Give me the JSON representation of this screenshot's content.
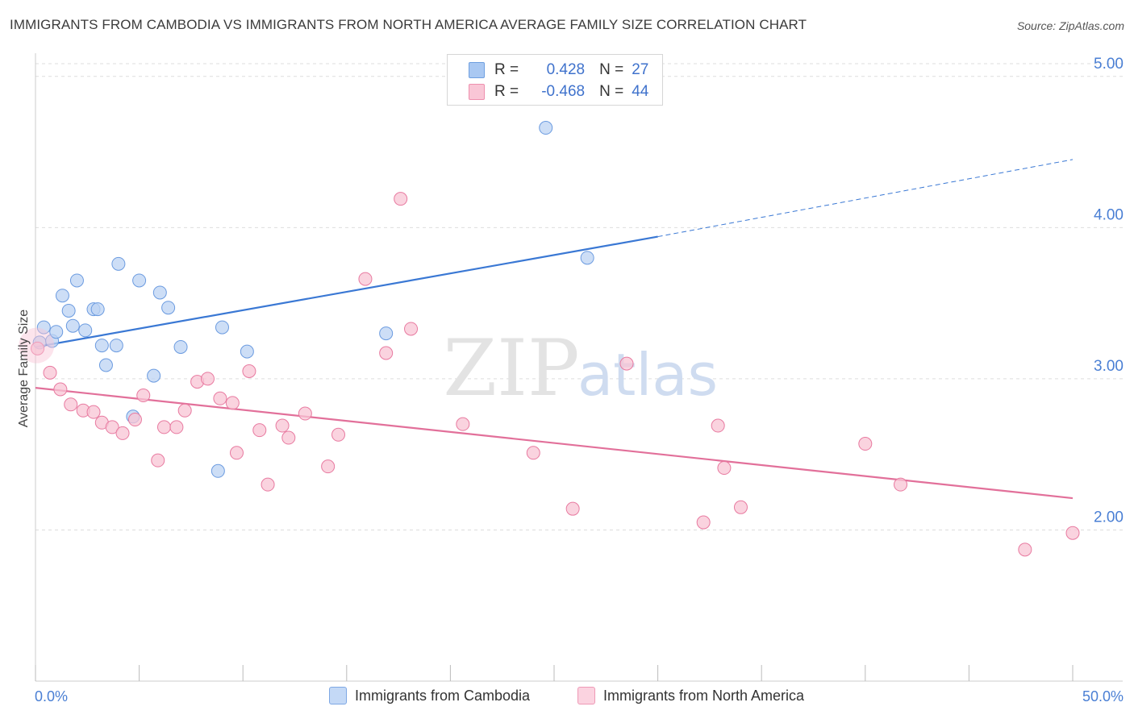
{
  "title": "IMMIGRANTS FROM CAMBODIA VS IMMIGRANTS FROM NORTH AMERICA AVERAGE FAMILY SIZE CORRELATION CHART",
  "source": "Source: ZipAtlas.com",
  "watermark": {
    "zip": "ZIP",
    "atlas": "atlas"
  },
  "legend": {
    "r_label": "R =",
    "n_label": "N =",
    "rows": [
      {
        "r": "0.428",
        "n": "27",
        "color": "#a9c8f2",
        "border": "#6f9fe0"
      },
      {
        "r": "-0.468",
        "n": "44",
        "color": "#f9c6d6",
        "border": "#ee8fae"
      }
    ]
  },
  "bottom_legend": [
    {
      "label": "Immigrants from Cambodia",
      "color": "#c4d9f6",
      "border": "#7ea8e4"
    },
    {
      "label": "Immigrants from North America",
      "color": "#fbd3e0",
      "border": "#ee99b6"
    }
  ],
  "chart_data": {
    "type": "scatter",
    "xlabel": "",
    "ylabel": "Average Family Size",
    "xlim": [
      0,
      50
    ],
    "ylim": [
      1.0,
      5.1
    ],
    "x_tick_labels": [
      "0.0%",
      "50.0%"
    ],
    "y_ticks": [
      2.0,
      3.0,
      4.0,
      5.0
    ],
    "y_tick_labels": [
      "2.00",
      "3.00",
      "4.00",
      "5.00"
    ],
    "grid": true,
    "series": [
      {
        "name": "Immigrants from Cambodia",
        "color": "#6b9be0",
        "fill": "#bcd3f3",
        "trend": {
          "x0": 0,
          "y0": 3.21,
          "x1": 30,
          "y1": 3.94,
          "dash_to_x": 50,
          "dash_to_y": 4.45
        },
        "points": [
          [
            0.2,
            3.24
          ],
          [
            0.4,
            3.34
          ],
          [
            0.8,
            3.25
          ],
          [
            1.0,
            3.31
          ],
          [
            1.3,
            3.55
          ],
          [
            1.6,
            3.45
          ],
          [
            1.8,
            3.35
          ],
          [
            2.0,
            3.65
          ],
          [
            2.4,
            3.32
          ],
          [
            2.8,
            3.46
          ],
          [
            3.2,
            3.22
          ],
          [
            3.4,
            3.09
          ],
          [
            3.9,
            3.22
          ],
          [
            4.0,
            3.76
          ],
          [
            4.7,
            2.75
          ],
          [
            5.0,
            3.65
          ],
          [
            5.7,
            3.02
          ],
          [
            6.0,
            3.57
          ],
          [
            6.4,
            3.47
          ],
          [
            7.0,
            3.21
          ],
          [
            8.8,
            2.39
          ],
          [
            9.0,
            3.34
          ],
          [
            10.2,
            3.18
          ],
          [
            16.9,
            3.3
          ],
          [
            24.6,
            4.66
          ],
          [
            26.6,
            3.8
          ],
          [
            3.0,
            3.46
          ]
        ]
      },
      {
        "name": "Immigrants from North America",
        "color": "#e87aa0",
        "fill": "#f8c4d4",
        "trend": {
          "x0": 0,
          "y0": 2.94,
          "x1": 50,
          "y1": 2.21
        },
        "points": [
          [
            0.1,
            3.2
          ],
          [
            0.7,
            3.04
          ],
          [
            1.2,
            2.93
          ],
          [
            1.7,
            2.83
          ],
          [
            2.3,
            2.79
          ],
          [
            2.8,
            2.78
          ],
          [
            3.2,
            2.71
          ],
          [
            3.7,
            2.68
          ],
          [
            4.2,
            2.64
          ],
          [
            4.8,
            2.73
          ],
          [
            5.2,
            2.89
          ],
          [
            5.9,
            2.46
          ],
          [
            6.2,
            2.68
          ],
          [
            6.8,
            2.68
          ],
          [
            7.2,
            2.79
          ],
          [
            7.8,
            2.98
          ],
          [
            8.3,
            3.0
          ],
          [
            8.9,
            2.87
          ],
          [
            9.5,
            2.84
          ],
          [
            9.7,
            2.51
          ],
          [
            10.3,
            3.05
          ],
          [
            10.8,
            2.66
          ],
          [
            11.2,
            2.3
          ],
          [
            11.9,
            2.69
          ],
          [
            12.2,
            2.61
          ],
          [
            13.0,
            2.77
          ],
          [
            14.1,
            2.42
          ],
          [
            14.6,
            2.63
          ],
          [
            15.9,
            3.66
          ],
          [
            16.9,
            3.17
          ],
          [
            17.6,
            4.19
          ],
          [
            18.1,
            3.33
          ],
          [
            20.6,
            2.7
          ],
          [
            24.0,
            2.51
          ],
          [
            25.9,
            2.14
          ],
          [
            28.5,
            3.1
          ],
          [
            32.2,
            2.05
          ],
          [
            32.9,
            2.69
          ],
          [
            33.2,
            2.41
          ],
          [
            34.0,
            2.15
          ],
          [
            40.0,
            2.57
          ],
          [
            41.7,
            2.3
          ],
          [
            47.7,
            1.87
          ],
          [
            50.0,
            1.98
          ]
        ]
      }
    ]
  }
}
